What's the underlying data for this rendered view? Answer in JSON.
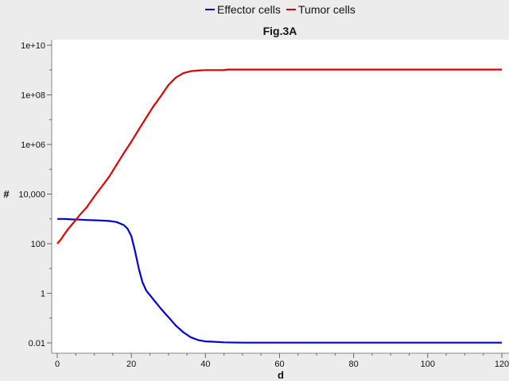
{
  "chart_data": {
    "type": "line",
    "title": "Fig.3A",
    "xlabel": "d",
    "ylabel": "#",
    "xlim": [
      0,
      120
    ],
    "ylim": [
      0.01,
      10000000000
    ],
    "y_scale": "log",
    "legend_position": "top",
    "grid": false,
    "x_ticks": [
      0,
      20,
      40,
      60,
      80,
      100,
      120
    ],
    "y_ticks": [
      {
        "value": 0.01,
        "label": "0.01"
      },
      {
        "value": 1,
        "label": "1"
      },
      {
        "value": 100,
        "label": "100"
      },
      {
        "value": 10000,
        "label": "10,000"
      },
      {
        "value": 1000000,
        "label": "1e+06"
      },
      {
        "value": 100000000,
        "label": "1e+08"
      },
      {
        "value": 10000000000,
        "label": "1e+10"
      }
    ],
    "series": [
      {
        "name": "Effector cells",
        "color": "#0000dd",
        "x": [
          0,
          2,
          4,
          6,
          8,
          10,
          12,
          14,
          16,
          18,
          19,
          20,
          21,
          22,
          23,
          24,
          26,
          28,
          29,
          30,
          32,
          34,
          36,
          38,
          40,
          42,
          45,
          50,
          60,
          80,
          100,
          120
        ],
        "y": [
          1000,
          1000,
          950,
          930,
          900,
          880,
          860,
          820,
          750,
          560,
          400,
          200,
          50,
          10,
          2.8,
          1.3,
          0.55,
          0.24,
          0.16,
          0.11,
          0.05,
          0.027,
          0.017,
          0.013,
          0.0115,
          0.0112,
          0.0105,
          0.0102,
          0.0102,
          0.0102,
          0.0102,
          0.0102
        ]
      },
      {
        "name": "Tumor cells",
        "color": "#dd0000",
        "x": [
          0,
          1,
          2,
          3,
          4,
          5,
          6,
          8,
          10,
          12,
          14,
          16,
          18,
          20,
          22,
          24,
          26,
          28,
          30,
          32,
          34,
          36,
          38,
          40,
          42,
          44,
          45,
          46,
          50,
          60,
          80,
          100,
          120
        ],
        "y": [
          100,
          150,
          250,
          400,
          600,
          900,
          1400,
          3000,
          8000,
          20000,
          50000,
          150000,
          450000,
          1300000,
          4000000,
          12000000,
          35000000,
          90000000,
          250000000,
          500000000,
          750000000,
          900000000,
          950000000,
          1000000000,
          1000000000,
          1000000000,
          1000000000,
          1050000000,
          1050000000,
          1050000000,
          1050000000,
          1050000000,
          1050000000
        ]
      }
    ]
  }
}
